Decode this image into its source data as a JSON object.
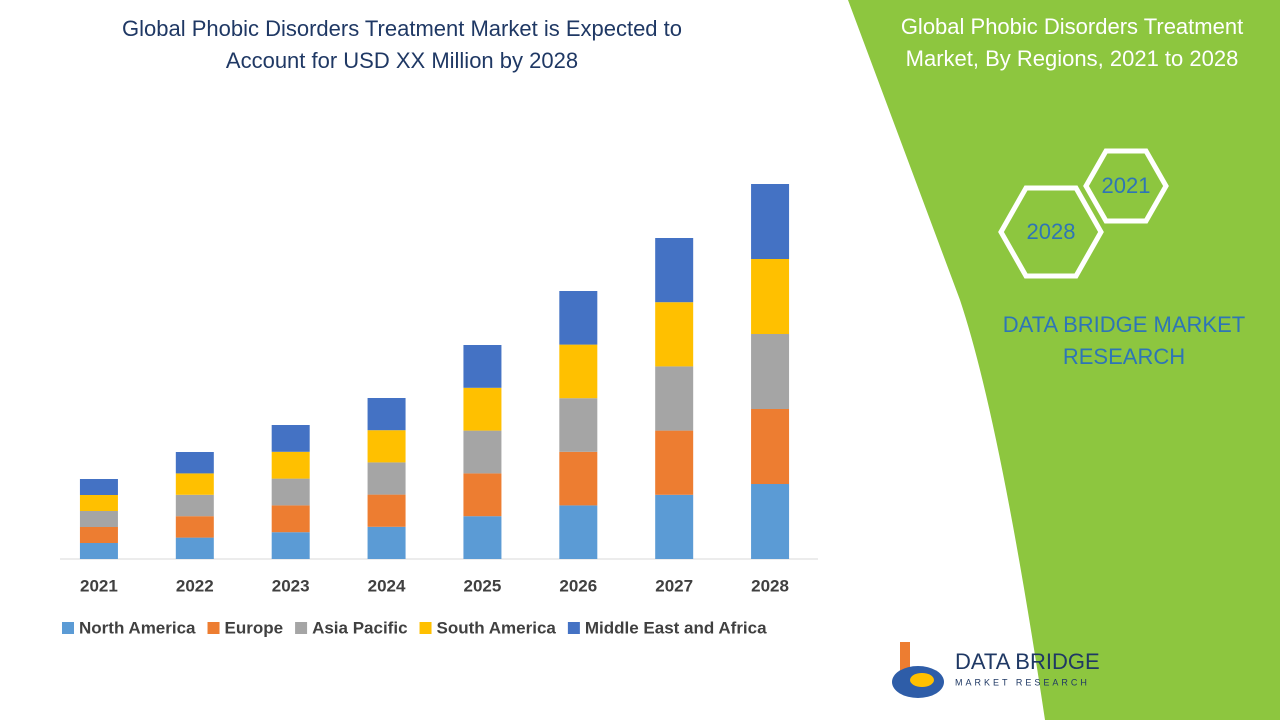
{
  "chart_data": {
    "type": "stacked-bar",
    "title": [
      "Global Phobic Disorders Treatment Market is Expected to",
      "Account for USD XX Million by 2028"
    ],
    "categories": [
      "2021",
      "2022",
      "2023",
      "2024",
      "2025",
      "2026",
      "2027",
      "2028"
    ],
    "series": [
      {
        "name": "North America",
        "color": "#5b9bd5",
        "values": [
          16,
          21.4,
          26.8,
          32.2,
          42.8,
          53.6,
          64.2,
          75
        ]
      },
      {
        "name": "Europe",
        "color": "#ed7d31",
        "values": [
          16,
          21.4,
          26.8,
          32.2,
          42.8,
          53.6,
          64.2,
          75
        ]
      },
      {
        "name": "Asia Pacific",
        "color": "#a5a5a5",
        "values": [
          16,
          21.4,
          26.8,
          32.2,
          42.8,
          53.6,
          64.2,
          75
        ]
      },
      {
        "name": "South America",
        "color": "#ffc000",
        "values": [
          16,
          21.4,
          26.8,
          32.2,
          42.8,
          53.6,
          64.2,
          75
        ]
      },
      {
        "name": "Middle East and Africa",
        "color": "#4472c4",
        "values": [
          16,
          21.4,
          26.8,
          32.2,
          42.8,
          53.6,
          64.2,
          75
        ]
      }
    ],
    "ylim": [
      0,
      400
    ],
    "legend": "bottom"
  },
  "panel": {
    "title": [
      "Global Phobic Disorders Treatment",
      "Market, By Regions, 2021 to 2028"
    ],
    "hex_start": "2021",
    "hex_end": "2028",
    "brand": [
      "DATA BRIDGE MARKET",
      "RESEARCH"
    ],
    "logo_name": "DATA BRIDGE",
    "logo_sub": "MARKET RESEARCH"
  }
}
